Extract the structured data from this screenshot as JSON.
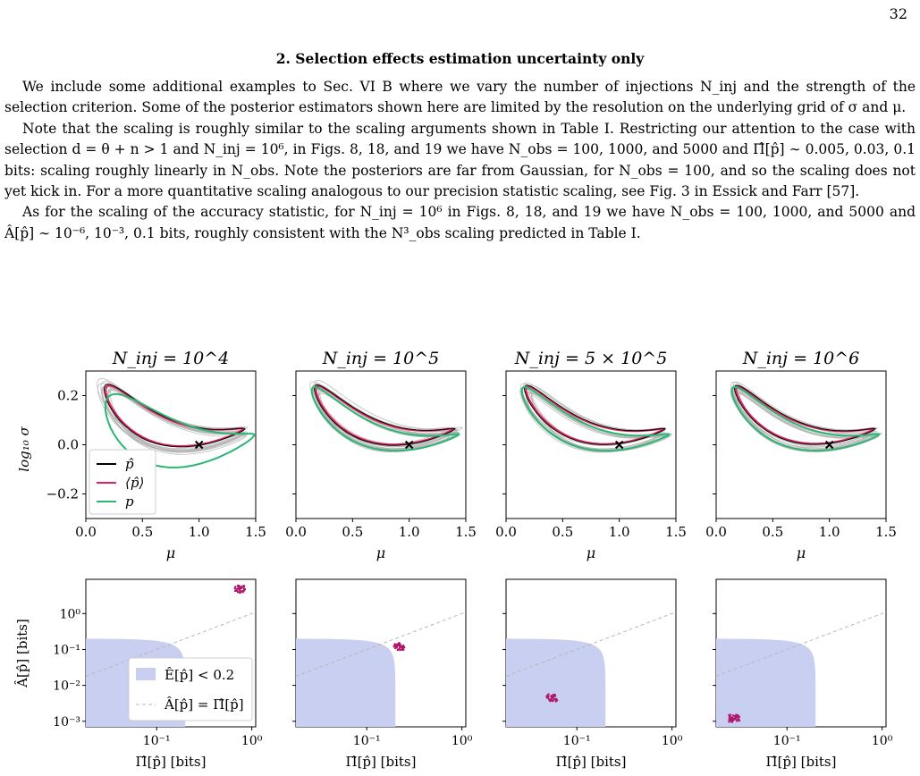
{
  "page": {
    "number": "32"
  },
  "section": {
    "title": "2.   Selection effects estimation uncertainty only"
  },
  "paragraphs": [
    "We include some additional examples to Sec. VI B where we vary the number of injections N_inj and the strength of the selection criterion. Some of the posterior estimators shown here are limited by the resolution on the underlying grid of σ and μ.",
    "Note that the scaling is roughly similar to the scaling arguments shown in Table I. Restricting our attention to the case with selection d = θ + n > 1 and N_inj = 10⁶, in Figs. 8, 18, and 19 we have N_obs = 100, 1000, and 5000 and Π̂[p̂] ∼ 0.005, 0.03, 0.1 bits: scaling roughly linearly in N_obs. Note the posteriors are far from Gaussian, for N_obs = 100, and so the scaling does not yet kick in. For a more quantitative scaling analogous to our precision statistic scaling, see Fig. 3 in Essick and Farr [57].",
    "As for the scaling of the accuracy statistic, for N_inj = 10⁶ in Figs. 8, 18, and 19 we have N_obs = 100, 1000, and 5000 and Â[p̂] ∼ 10⁻⁶, 10⁻³, 0.1 bits, roughly consistent with the N³_obs scaling predicted in Table I."
  ],
  "figure": {
    "panel_titles": [
      "N_inj = 10^4",
      "N_inj = 10^5",
      "N_inj = 5 × 10^5",
      "N_inj = 10^6"
    ],
    "top_row": {
      "xlabel": "μ",
      "ylabel": "log₁₀ σ",
      "xticks": [
        "0.0",
        "0.5",
        "1.0",
        "1.5"
      ],
      "yticks": [
        "0.2",
        "0.0",
        "−0.2"
      ],
      "legend": [
        "p̂",
        "⟨p̂⟩",
        "p"
      ]
    },
    "bottom_row": {
      "xlabel": "Π̂[p̂] [bits]",
      "ylabel": "Â[p̂] [bits]",
      "xticks": [
        "10⁻¹",
        "10⁰"
      ],
      "yticks": [
        "10⁰",
        "10⁻¹",
        "10⁻²",
        "10⁻³"
      ],
      "legend": [
        "Ê[p̂] < 0.2",
        "Â[p̂] = Π̂[p̂]"
      ]
    },
    "colors": {
      "p_hat": "#000000",
      "mean_p_hat": "#e0245e",
      "p": "#2bb673",
      "samples": "#b5b5b5",
      "region": "#c9cff0",
      "scatter": "#b0186b",
      "identity": "#b8b8b8"
    }
  },
  "chart_data": [
    {
      "type": "scatter",
      "title": "N_inj = 10^4",
      "xlabel": "μ",
      "ylabel": "log10 σ",
      "xlim": [
        0.0,
        1.5
      ],
      "ylim": [
        -0.3,
        0.3
      ],
      "truth": {
        "x": 1.0,
        "y": 0.0
      }
    },
    {
      "type": "scatter",
      "title": "N_inj = 10^5",
      "xlabel": "μ",
      "xlim": [
        0.0,
        1.5
      ],
      "ylim": [
        -0.3,
        0.3
      ],
      "truth": {
        "x": 1.0,
        "y": 0.0
      }
    },
    {
      "type": "scatter",
      "title": "N_inj = 5 × 10^5",
      "xlabel": "μ",
      "xlim": [
        0.0,
        1.5
      ],
      "ylim": [
        -0.3,
        0.3
      ],
      "truth": {
        "x": 1.0,
        "y": 0.0
      }
    },
    {
      "type": "scatter",
      "title": "N_inj = 10^6",
      "xlabel": "μ",
      "xlim": [
        0.0,
        1.5
      ],
      "ylim": [
        -0.3,
        0.3
      ],
      "truth": {
        "x": 1.0,
        "y": 0.0
      }
    },
    {
      "type": "scatter",
      "xlabel": "Π̂[p̂] [bits]",
      "ylabel": "Â[p̂] [bits]",
      "xscale": "log",
      "yscale": "log",
      "xlim": [
        0.018,
        1.1
      ],
      "ylim": [
        0.0007,
        9
      ],
      "cluster_center": {
        "x": 0.75,
        "y": 4.8
      }
    },
    {
      "type": "scatter",
      "xlabel": "Π̂[p̂] [bits]",
      "xscale": "log",
      "yscale": "log",
      "xlim": [
        0.018,
        1.1
      ],
      "ylim": [
        0.0007,
        9
      ],
      "cluster_center": {
        "x": 0.22,
        "y": 0.12
      }
    },
    {
      "type": "scatter",
      "xlabel": "Π̂[p̂] [bits]",
      "xscale": "log",
      "yscale": "log",
      "xlim": [
        0.018,
        1.1
      ],
      "ylim": [
        0.0007,
        9
      ],
      "cluster_center": {
        "x": 0.055,
        "y": 0.0045
      }
    },
    {
      "type": "scatter",
      "xlabel": "Π̂[p̂] [bits]",
      "xscale": "log",
      "yscale": "log",
      "xlim": [
        0.018,
        1.1
      ],
      "ylim": [
        0.0007,
        9
      ],
      "cluster_center": {
        "x": 0.028,
        "y": 0.0012
      }
    }
  ]
}
